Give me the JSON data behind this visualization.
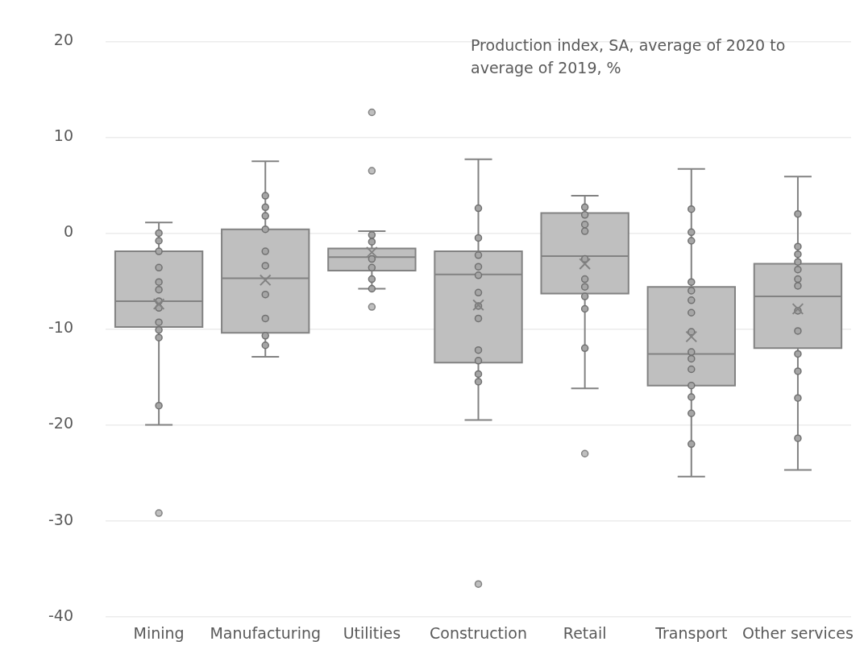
{
  "chart_data": {
    "type": "box",
    "categories": [
      "Mining",
      "Manufacturing",
      "Utilities",
      "Construction",
      "Retail",
      "Transport",
      "Other services"
    ],
    "annotations": [
      "Production index, SA, average of 2020 to average of 2019, %"
    ],
    "ylim": [
      -40,
      20
    ],
    "yticks": [
      -40,
      -30,
      -20,
      -10,
      0,
      10,
      20
    ],
    "grid": "y",
    "legend": false,
    "marker": "circle",
    "series": [
      {
        "type": "box",
        "color": "#bfbfbf",
        "boxes": [
          {
            "low": -20,
            "q1": -9.8,
            "median": -7.1,
            "q3": -1.9,
            "high": 1.1,
            "mean": -7.4,
            "outliers": [
              -29.2
            ]
          },
          {
            "low": -12.9,
            "q1": -10.4,
            "median": -4.7,
            "q3": 0.4,
            "high": 7.5,
            "mean": -4.9
          },
          {
            "low": -5.8,
            "q1": -3.9,
            "median": -2.5,
            "q3": -1.6,
            "high": 0.2,
            "mean": -2.0,
            "outliers": [
              12.6,
              6.5,
              -7.7
            ]
          },
          {
            "low": -19.5,
            "q1": -13.5,
            "median": -4.3,
            "q3": -1.9,
            "high": 7.7,
            "mean": -7.5,
            "outliers": [
              -36.6
            ]
          },
          {
            "low": -16.2,
            "q1": -6.3,
            "median": -2.4,
            "q3": 2.1,
            "high": 3.9,
            "mean": -3.2,
            "outliers": [
              -23.0
            ]
          },
          {
            "low": -25.4,
            "q1": -15.9,
            "median": -12.6,
            "q3": -5.6,
            "high": 6.7,
            "mean": -10.8
          },
          {
            "low": -24.7,
            "q1": -12.0,
            "median": -6.6,
            "q3": -3.2,
            "high": 5.9,
            "mean": -7.9
          }
        ]
      },
      {
        "type": "scatter",
        "color": "#a6a6a6",
        "x": [
          "Mining",
          "Mining",
          "Mining",
          "Mining",
          "Mining",
          "Mining",
          "Mining",
          "Mining",
          "Mining",
          "Mining",
          "Mining",
          "Mining",
          "Manufacturing",
          "Manufacturing",
          "Manufacturing",
          "Manufacturing",
          "Manufacturing",
          "Manufacturing",
          "Manufacturing",
          "Manufacturing",
          "Manufacturing",
          "Manufacturing",
          "Utilities",
          "Utilities",
          "Utilities",
          "Utilities",
          "Utilities",
          "Utilities",
          "Construction",
          "Construction",
          "Construction",
          "Construction",
          "Construction",
          "Construction",
          "Construction",
          "Construction",
          "Construction",
          "Construction",
          "Construction",
          "Construction",
          "Retail",
          "Retail",
          "Retail",
          "Retail",
          "Retail",
          "Retail",
          "Retail",
          "Retail",
          "Retail",
          "Retail",
          "Transport",
          "Transport",
          "Transport",
          "Transport",
          "Transport",
          "Transport",
          "Transport",
          "Transport",
          "Transport",
          "Transport",
          "Transport",
          "Transport",
          "Transport",
          "Transport",
          "Transport",
          "Other services",
          "Other services",
          "Other services",
          "Other services",
          "Other services",
          "Other services",
          "Other services",
          "Other services",
          "Other services",
          "Other services",
          "Other services",
          "Other services",
          "Other services"
        ],
        "values": [
          0,
          -0.8,
          -1.9,
          -3.6,
          -5.1,
          -5.9,
          -7.1,
          -7.8,
          -9.3,
          -10.1,
          -10.9,
          -18,
          3.9,
          2.7,
          1.8,
          0.4,
          -1.9,
          -3.4,
          -6.4,
          -8.9,
          -10.7,
          -11.7,
          -0.2,
          -0.9,
          -2.7,
          -3.6,
          -4.8,
          -5.8,
          2.6,
          -0.5,
          -2.3,
          -3.5,
          -4.4,
          -6.2,
          -7.6,
          -8.9,
          -12.2,
          -13.3,
          -14.7,
          -15.5,
          2.7,
          1.9,
          0.9,
          0.2,
          -2.7,
          -4.8,
          -5.6,
          -6.6,
          -7.9,
          -12.0,
          2.5,
          0.1,
          -0.8,
          -5.1,
          -6.0,
          -7.0,
          -8.3,
          -10.3,
          -12.4,
          -13.1,
          -14.2,
          -15.9,
          -17.1,
          -18.8,
          -22.0,
          2.0,
          -1.4,
          -2.2,
          -3.0,
          -3.8,
          -4.8,
          -5.5,
          -8.1,
          -10.2,
          -12.6,
          -14.4,
          -17.2,
          -21.4
        ]
      }
    ]
  }
}
